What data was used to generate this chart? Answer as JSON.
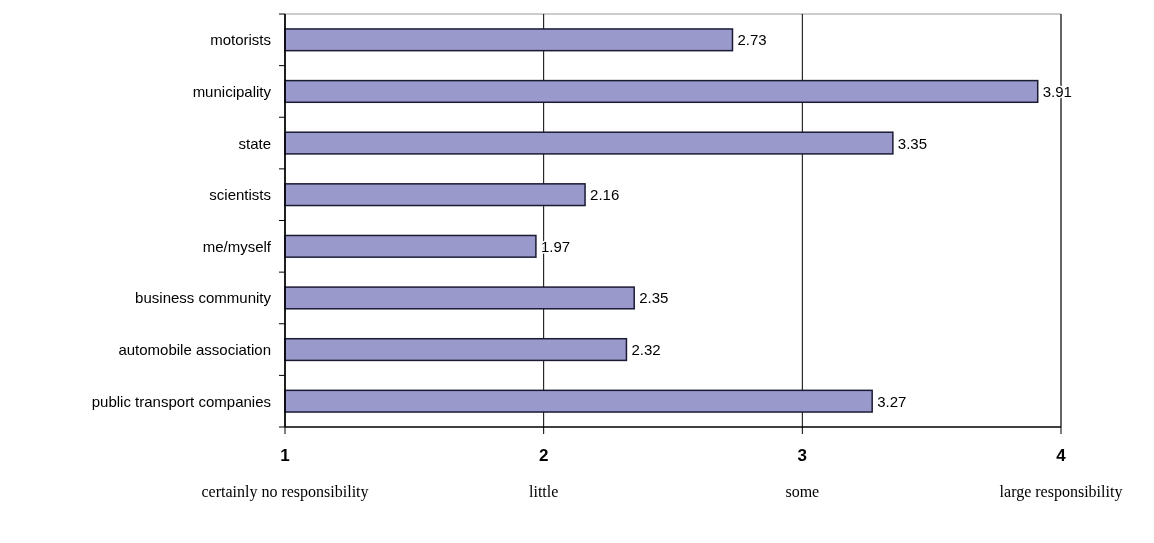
{
  "chart_data": {
    "type": "bar",
    "orientation": "horizontal",
    "categories": [
      "motorists",
      "municipality",
      "state",
      "scientists",
      "me/myself",
      "business community",
      "automobile association",
      "public transport companies"
    ],
    "values": [
      2.73,
      3.91,
      3.35,
      2.16,
      1.97,
      2.35,
      2.32,
      3.27
    ],
    "color": "#9999cc",
    "data_labels": true,
    "xlim": [
      1,
      4
    ],
    "xticks": [
      1,
      2,
      3,
      4
    ],
    "grid": "x",
    "annotations": [
      "certainly no responsibility",
      "little",
      "some",
      "large responsibility"
    ]
  }
}
